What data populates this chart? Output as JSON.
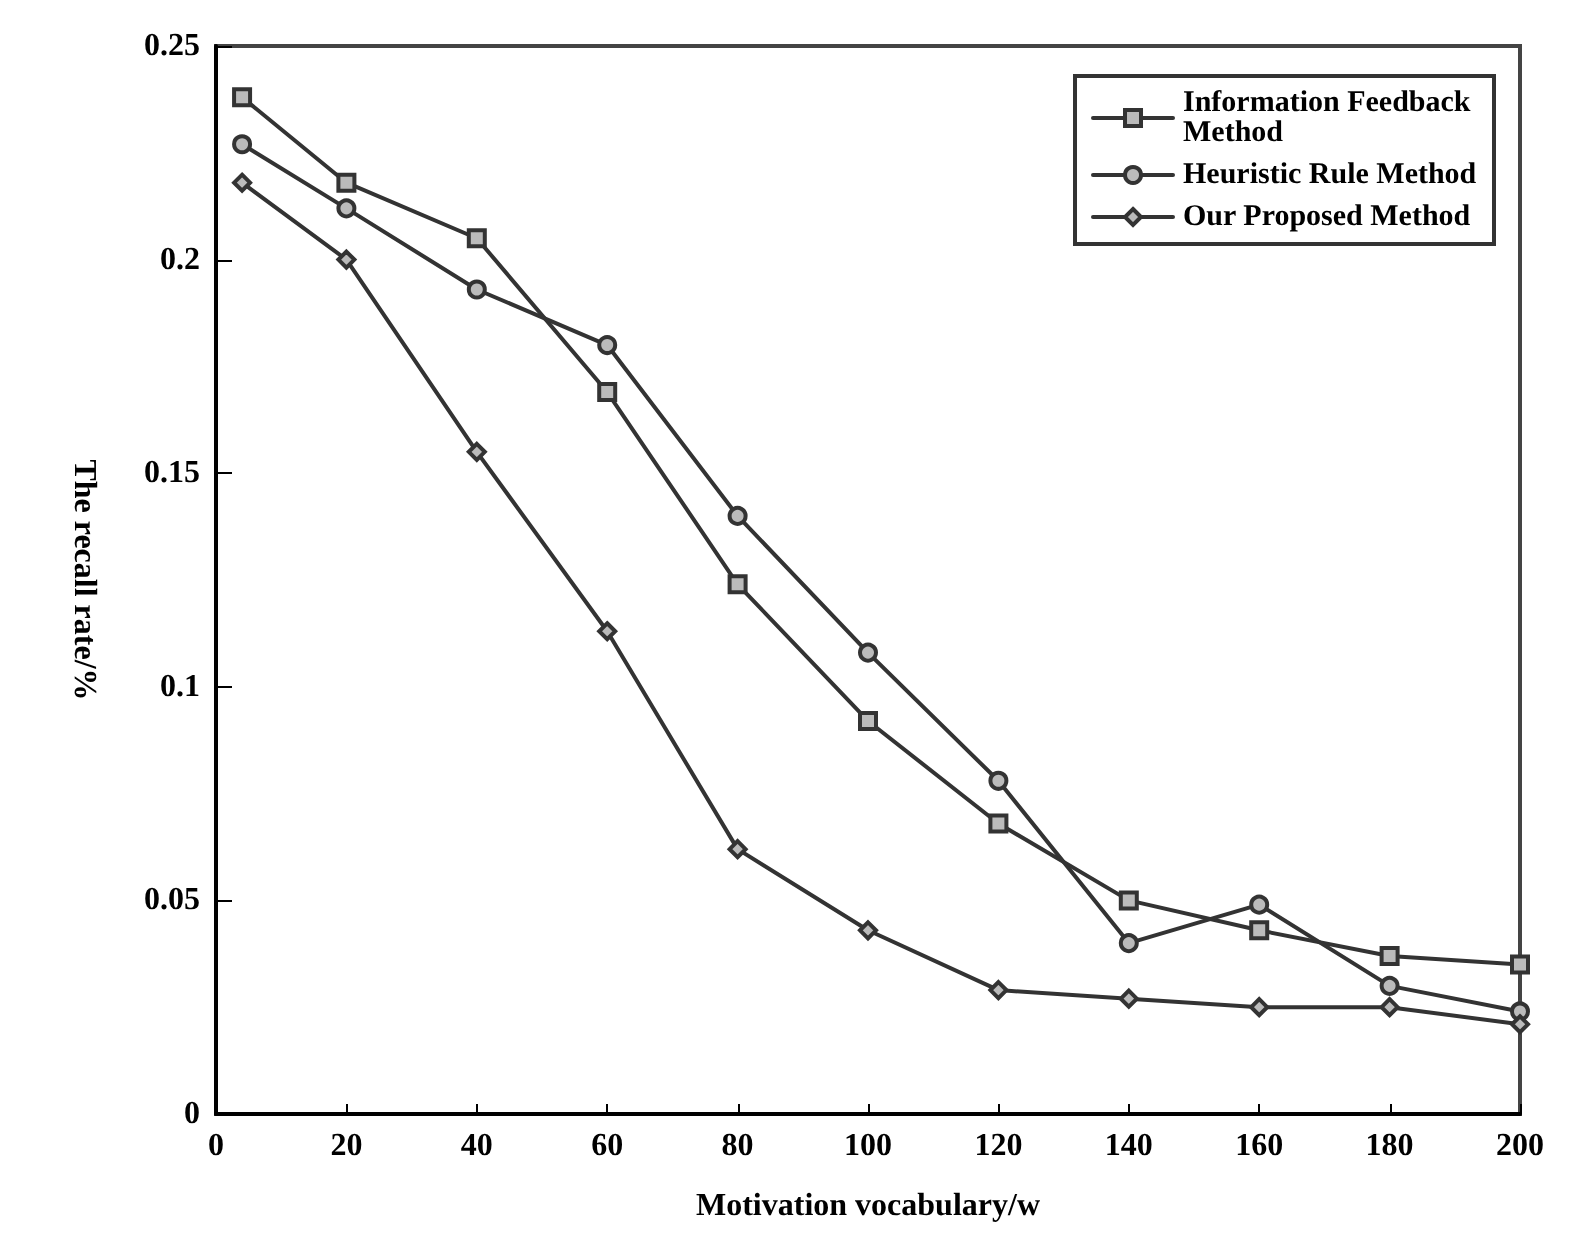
{
  "chart_data": {
    "type": "line",
    "xlabel": "Motivation vocabulary/w",
    "ylabel": "The recall rate/%",
    "xlim": [
      0,
      200
    ],
    "xticks": [
      0,
      20,
      40,
      60,
      80,
      100,
      120,
      140,
      160,
      180,
      200
    ],
    "ylim": [
      0,
      0.25
    ],
    "yticks": [
      0,
      0.05,
      0.1,
      0.15,
      0.2,
      0.25
    ],
    "grid": false,
    "legend": "top right",
    "line_style": "solid",
    "x": [
      4,
      20,
      40,
      60,
      80,
      100,
      120,
      140,
      160,
      180,
      200
    ],
    "series": [
      {
        "name": "Information Feedback Method",
        "color": "#333333",
        "marker": "square",
        "values": [
          0.238,
          0.218,
          0.205,
          0.169,
          0.124,
          0.092,
          0.068,
          0.05,
          0.043,
          0.037,
          0.035
        ]
      },
      {
        "name": "Heuristic Rule Method",
        "color": "#333333",
        "marker": "circle",
        "values": [
          0.227,
          0.212,
          0.193,
          0.18,
          0.14,
          0.108,
          0.078,
          0.04,
          0.049,
          0.03,
          0.024
        ]
      },
      {
        "name": "Our Proposed Method",
        "color": "#333333",
        "marker": "diamond",
        "values": [
          0.218,
          0.2,
          0.155,
          0.113,
          0.062,
          0.043,
          0.029,
          0.027,
          0.025,
          0.025,
          0.021
        ]
      }
    ]
  }
}
